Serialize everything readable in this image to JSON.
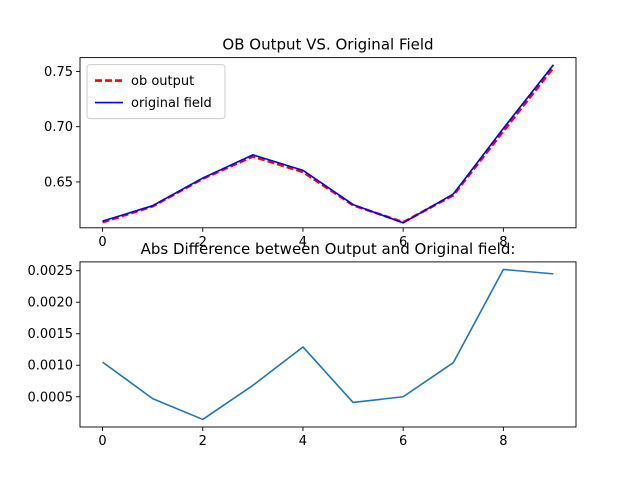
{
  "chart_data": [
    {
      "type": "line",
      "title": "OB Output VS. Original Field",
      "xlabel": "",
      "ylabel": "",
      "x": [
        0,
        1,
        2,
        3,
        4,
        5,
        6,
        7,
        8,
        9
      ],
      "xlim": [
        -0.45,
        9.45
      ],
      "ylim": [
        0.6085,
        0.7625
      ],
      "xticks": [
        "0",
        "2",
        "4",
        "6",
        "8"
      ],
      "yticks": [
        "0.65",
        "0.70",
        "0.75"
      ],
      "grid": false,
      "legend_position": "upper left",
      "series": [
        {
          "name": "ob output",
          "color": "#ff0000",
          "style": "dashed",
          "values": [
            0.6135,
            0.628,
            0.653,
            0.673,
            0.659,
            0.629,
            0.6135,
            0.638,
            0.696,
            0.7535
          ]
        },
        {
          "name": "original field",
          "color": "#0000ff",
          "style": "solid",
          "values": [
            0.6145,
            0.6285,
            0.6535,
            0.6745,
            0.6605,
            0.6295,
            0.613,
            0.639,
            0.6985,
            0.756
          ]
        }
      ]
    },
    {
      "type": "line",
      "title": "Abs Difference between Output and Original field:",
      "xlabel": "",
      "ylabel": "",
      "x": [
        0,
        1,
        2,
        3,
        4,
        5,
        6,
        7,
        8,
        9
      ],
      "xlim": [
        -0.45,
        9.45
      ],
      "ylim": [
        2e-05,
        0.00264
      ],
      "xticks": [
        "0",
        "2",
        "4",
        "6",
        "8"
      ],
      "yticks": [
        "0.0005",
        "0.0010",
        "0.0015",
        "0.0020",
        "0.0025"
      ],
      "grid": false,
      "series": [
        {
          "color": "#1f77b4",
          "style": "solid",
          "values": [
            0.00105,
            0.00047,
            0.00014,
            0.00068,
            0.00129,
            0.00041,
            0.0005,
            0.00104,
            0.00252,
            0.00245
          ]
        }
      ]
    }
  ]
}
